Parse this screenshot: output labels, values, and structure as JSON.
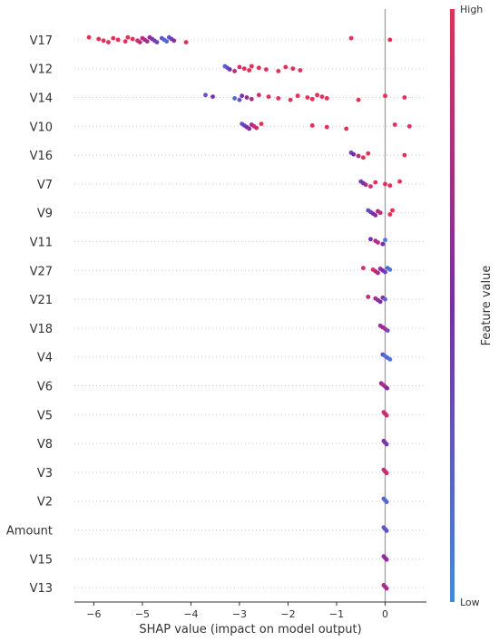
{
  "chart_data": {
    "type": "scatter",
    "subtype": "shap-beeswarm",
    "xlabel": "SHAP value (impact on model output)",
    "xlim": [
      -6.4,
      0.85
    ],
    "xticks": [
      -6,
      -5,
      -4,
      -3,
      -2,
      -1,
      0
    ],
    "features": [
      {
        "name": "V17",
        "points": [
          [
            -6.1,
            1
          ],
          [
            -5.9,
            1
          ],
          [
            -5.8,
            1
          ],
          [
            -5.7,
            1
          ],
          [
            -5.6,
            1
          ],
          [
            -5.5,
            1
          ],
          [
            -5.35,
            1
          ],
          [
            -5.3,
            1
          ],
          [
            -5.2,
            1
          ],
          [
            -5.1,
            0.9
          ],
          [
            -5.05,
            0.8
          ],
          [
            -5.0,
            0.8
          ],
          [
            -4.95,
            0.7
          ],
          [
            -4.9,
            0.7
          ],
          [
            -4.85,
            0.6
          ],
          [
            -4.8,
            0.6
          ],
          [
            -4.75,
            0.4
          ],
          [
            -4.7,
            0.4
          ],
          [
            -4.6,
            0.3
          ],
          [
            -4.55,
            0.2
          ],
          [
            -4.5,
            0.2
          ],
          [
            -4.45,
            0.3
          ],
          [
            -4.4,
            0.4
          ],
          [
            -4.35,
            0.6
          ],
          [
            -4.1,
            1
          ],
          [
            -0.7,
            1
          ],
          [
            0.1,
            1
          ]
        ]
      },
      {
        "name": "V12",
        "points": [
          [
            -3.3,
            0.2
          ],
          [
            -3.25,
            0.3
          ],
          [
            -3.2,
            0.5
          ],
          [
            -3.1,
            0.8
          ],
          [
            -3.0,
            0.9
          ],
          [
            -2.9,
            1
          ],
          [
            -2.8,
            1
          ],
          [
            -2.75,
            1
          ],
          [
            -2.6,
            1
          ],
          [
            -2.45,
            1
          ],
          [
            -2.2,
            1
          ],
          [
            -2.05,
            1
          ],
          [
            -1.9,
            1
          ],
          [
            -1.75,
            1
          ]
        ]
      },
      {
        "name": "V14",
        "points": [
          [
            -3.7,
            0.3
          ],
          [
            -3.55,
            0.5
          ],
          [
            -3.1,
            0.2
          ],
          [
            -3.0,
            0.3
          ],
          [
            -2.95,
            0.5
          ],
          [
            -2.85,
            0.6
          ],
          [
            -2.75,
            0.7
          ],
          [
            -2.6,
            0.9
          ],
          [
            -2.4,
            1
          ],
          [
            -2.2,
            1
          ],
          [
            -1.95,
            1
          ],
          [
            -1.8,
            1
          ],
          [
            -1.6,
            1
          ],
          [
            -1.5,
            1
          ],
          [
            -1.4,
            1
          ],
          [
            -1.3,
            1
          ],
          [
            -1.2,
            1
          ],
          [
            -0.55,
            1
          ],
          [
            0.0,
            1
          ],
          [
            0.4,
            1
          ]
        ]
      },
      {
        "name": "V10",
        "points": [
          [
            -2.95,
            0.3
          ],
          [
            -2.9,
            0.4
          ],
          [
            -2.85,
            0.5
          ],
          [
            -2.8,
            0.6
          ],
          [
            -2.75,
            0.7
          ],
          [
            -2.7,
            0.85
          ],
          [
            -2.65,
            0.9
          ],
          [
            -2.55,
            1
          ],
          [
            -1.5,
            1
          ],
          [
            -1.2,
            1
          ],
          [
            -0.8,
            1
          ],
          [
            0.2,
            1
          ],
          [
            0.5,
            1
          ]
        ]
      },
      {
        "name": "V16",
        "points": [
          [
            -0.7,
            0.4
          ],
          [
            -0.65,
            0.5
          ],
          [
            -0.55,
            0.8
          ],
          [
            -0.45,
            1
          ],
          [
            -0.35,
            1
          ],
          [
            0.4,
            1
          ]
        ]
      },
      {
        "name": "V7",
        "points": [
          [
            -0.5,
            0.4
          ],
          [
            -0.45,
            0.5
          ],
          [
            -0.4,
            0.7
          ],
          [
            -0.3,
            0.9
          ],
          [
            -0.2,
            1
          ],
          [
            0.0,
            1
          ],
          [
            0.1,
            1
          ],
          [
            0.3,
            1
          ]
        ]
      },
      {
        "name": "V9",
        "points": [
          [
            -0.35,
            0.3
          ],
          [
            -0.3,
            0.4
          ],
          [
            -0.25,
            0.5
          ],
          [
            -0.2,
            0.6
          ],
          [
            -0.15,
            0.7
          ],
          [
            -0.1,
            0.8
          ],
          [
            0.1,
            1
          ],
          [
            0.15,
            1
          ]
        ]
      },
      {
        "name": "V11",
        "points": [
          [
            -0.3,
            0.5
          ],
          [
            -0.2,
            0.7
          ],
          [
            -0.15,
            0.8
          ],
          [
            -0.05,
            0.5
          ],
          [
            0.0,
            0.1
          ]
        ]
      },
      {
        "name": "V27",
        "points": [
          [
            -0.45,
            0.9
          ],
          [
            -0.25,
            1
          ],
          [
            -0.2,
            0.8
          ],
          [
            -0.15,
            0.7
          ],
          [
            -0.1,
            0.6
          ],
          [
            -0.05,
            0.5
          ],
          [
            0.0,
            0.4
          ],
          [
            0.05,
            0.2
          ],
          [
            0.1,
            0.1
          ]
        ]
      },
      {
        "name": "V21",
        "points": [
          [
            -0.35,
            0.8
          ],
          [
            -0.2,
            0.7
          ],
          [
            -0.15,
            0.6
          ],
          [
            -0.1,
            0.5
          ],
          [
            -0.05,
            0.6
          ],
          [
            0.0,
            0.2
          ]
        ]
      },
      {
        "name": "V18",
        "points": [
          [
            -0.1,
            0.7
          ],
          [
            -0.05,
            0.6
          ],
          [
            0.0,
            0.8
          ],
          [
            0.05,
            0.3
          ]
        ]
      },
      {
        "name": "V4",
        "points": [
          [
            -0.05,
            0.3
          ],
          [
            0.0,
            0.1
          ],
          [
            0.05,
            0.2
          ],
          [
            0.1,
            0.1
          ]
        ]
      },
      {
        "name": "V6",
        "points": [
          [
            -0.08,
            0.6
          ],
          [
            -0.04,
            0.8
          ],
          [
            0.0,
            0.7
          ],
          [
            0.04,
            0.5
          ]
        ]
      },
      {
        "name": "V5",
        "points": [
          [
            -0.03,
            0.9
          ],
          [
            0.0,
            0.8
          ],
          [
            0.03,
            0.9
          ]
        ]
      },
      {
        "name": "V8",
        "points": [
          [
            -0.03,
            0.5
          ],
          [
            0.0,
            0.6
          ],
          [
            0.03,
            0.4
          ]
        ]
      },
      {
        "name": "V3",
        "points": [
          [
            -0.03,
            0.9
          ],
          [
            0.0,
            0.8
          ],
          [
            0.03,
            0.85
          ]
        ]
      },
      {
        "name": "V2",
        "points": [
          [
            -0.03,
            0.2
          ],
          [
            0.0,
            0.15
          ],
          [
            0.03,
            0.2
          ]
        ]
      },
      {
        "name": "Amount",
        "points": [
          [
            -0.03,
            0.3
          ],
          [
            0.0,
            0.25
          ],
          [
            0.03,
            0.3
          ]
        ]
      },
      {
        "name": "V15",
        "points": [
          [
            -0.03,
            0.6
          ],
          [
            0.0,
            0.55
          ],
          [
            0.03,
            0.6
          ]
        ]
      },
      {
        "name": "V13",
        "points": [
          [
            -0.03,
            0.7
          ],
          [
            0.0,
            0.65
          ],
          [
            0.03,
            0.7
          ]
        ]
      }
    ],
    "colorbar": {
      "label": "Feature value",
      "high_label": "High",
      "low_label": "Low",
      "low_color": "#3b8beb",
      "mid_color": "#7b2bb0",
      "high_color": "#ef2a56"
    }
  }
}
